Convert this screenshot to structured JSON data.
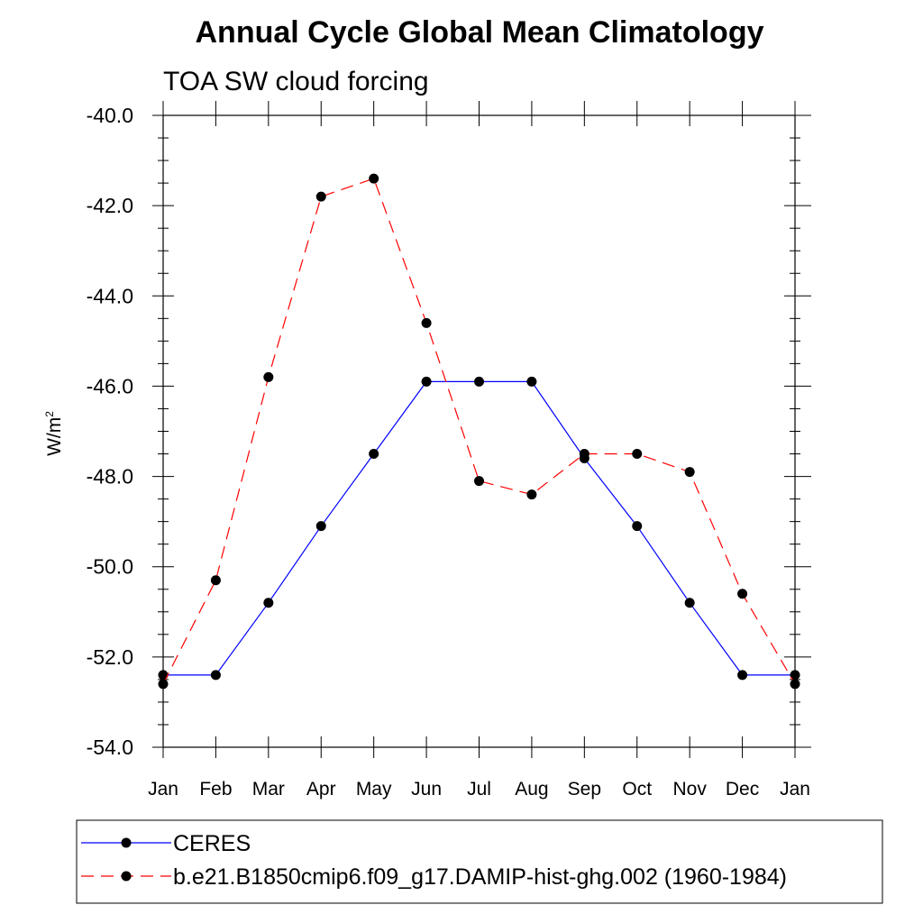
{
  "chart_data": {
    "type": "line",
    "title": "Annual Cycle Global Mean Climatology",
    "subtitle": "TOA SW cloud forcing",
    "ylabel": "W/m",
    "ylabel_superscript": "2",
    "ylim": [
      -54.0,
      -40.0
    ],
    "yticks": [
      -40.0,
      -42.0,
      -44.0,
      -46.0,
      -48.0,
      -50.0,
      -52.0,
      -54.0
    ],
    "ytick_labels": [
      "-40.0",
      "-42.0",
      "-44.0",
      "-46.0",
      "-48.0",
      "-50.0",
      "-52.0",
      "-54.0"
    ],
    "categories": [
      "Jan",
      "Feb",
      "Mar",
      "Apr",
      "May",
      "Jun",
      "Jul",
      "Aug",
      "Sep",
      "Oct",
      "Nov",
      "Dec",
      "Jan"
    ],
    "grid": false,
    "legend_placement": "bottom",
    "series": [
      {
        "name": "CERES",
        "color": "#0000ff",
        "line_style": "solid",
        "values": [
          -52.4,
          -52.4,
          -50.8,
          -49.1,
          -47.5,
          -45.9,
          -45.9,
          -45.9,
          -47.6,
          -49.1,
          -50.8,
          -52.4,
          -52.4
        ]
      },
      {
        "name": "b.e21.B1850cmip6.f09_g17.DAMIP-hist-ghg.002 (1960-1984)",
        "color": "#ff0000",
        "line_style": "dashed",
        "values": [
          -52.6,
          -50.3,
          -45.8,
          -41.8,
          -41.4,
          -44.6,
          -48.1,
          -48.4,
          -47.5,
          -47.5,
          -47.9,
          -50.6,
          -52.6
        ]
      }
    ]
  }
}
